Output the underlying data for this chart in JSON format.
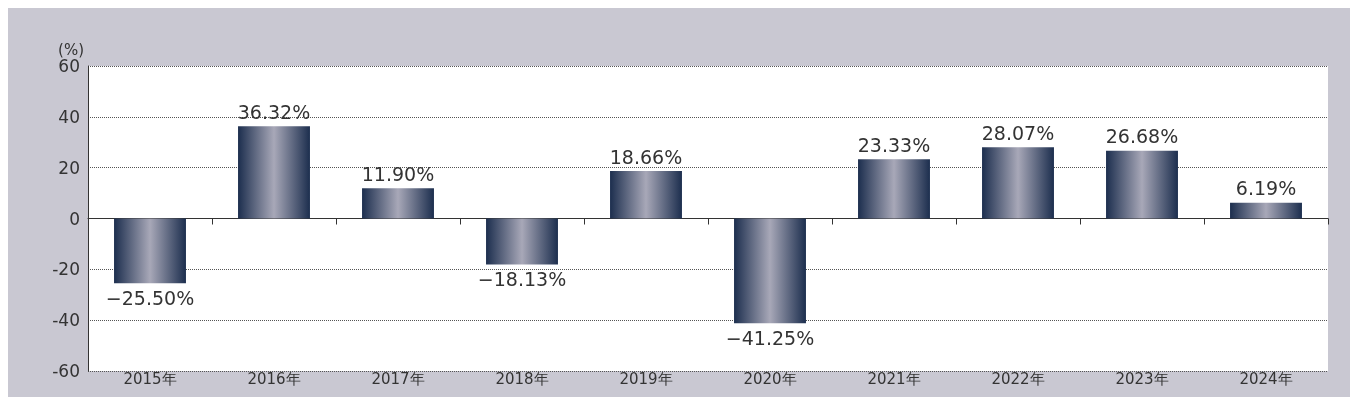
{
  "chart_data": {
    "type": "bar",
    "ylabel": "(%)",
    "categories": [
      "2015年",
      "2016年",
      "2017年",
      "2018年",
      "2019年",
      "2020年",
      "2021年",
      "2022年",
      "2023年",
      "2024年"
    ],
    "values": [
      -25.5,
      36.32,
      11.9,
      -18.13,
      18.66,
      -41.25,
      23.33,
      28.07,
      26.68,
      6.19
    ],
    "value_labels": [
      "−25.50%",
      "36.32%",
      "11.90%",
      "−18.13%",
      "18.66%",
      "−41.25%",
      "23.33%",
      "28.07%",
      "26.68%",
      "6.19%"
    ],
    "color": "#1c2e4e",
    "ylim": [
      -60,
      60
    ],
    "yticks": [
      -60,
      -40,
      -20,
      0,
      20,
      40,
      60
    ],
    "grid": "y"
  }
}
